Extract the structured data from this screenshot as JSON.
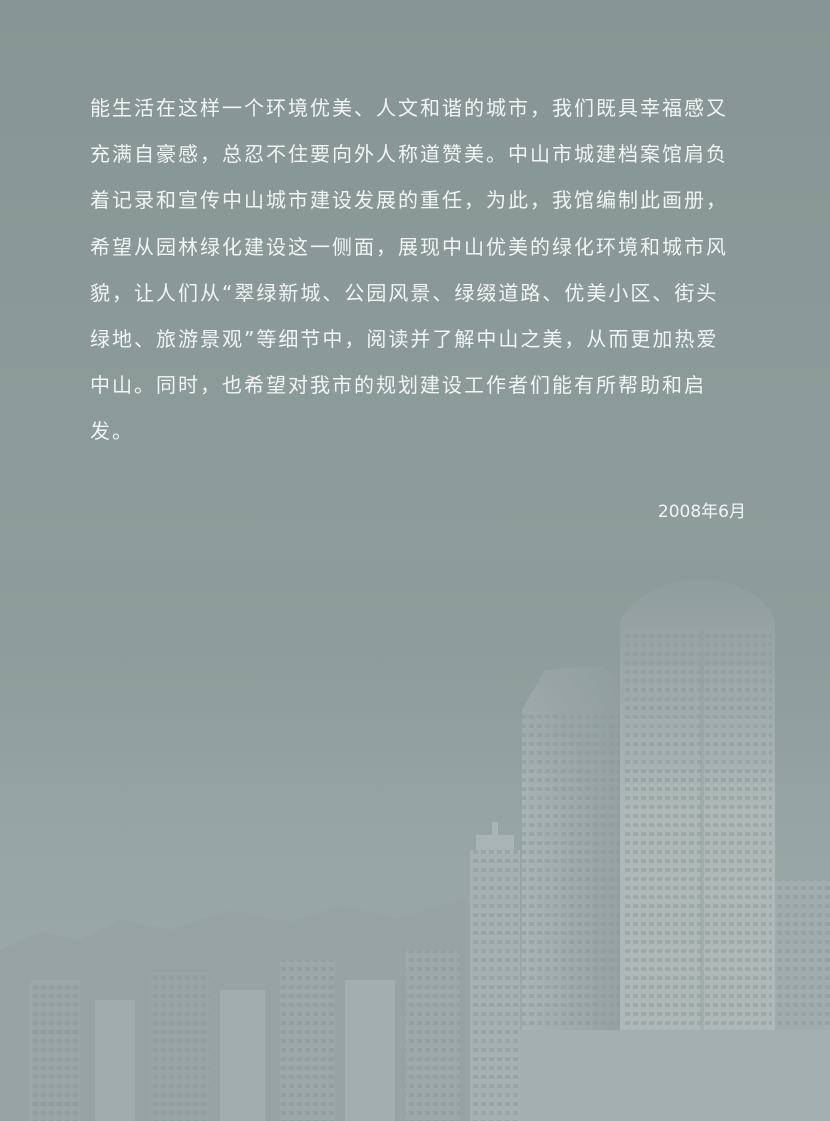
{
  "body": {
    "lines": [
      "能生活在这样一个环境优美、人文和谐的城市，我们既具幸福感又",
      "充满自豪感，总忍不住要向外人称道赞美。中山市城建档案馆肩负",
      "着记录和宣传中山城市建设发展的重任，为此，我馆编制此画册，",
      "希望从园林绿化建设这一侧面，展现中山优美的绿化环境和城市风",
      "貌，让人们从“翠绿新城、公园风景、绿缀道路、优美小区、街头",
      "绿地、旅游景观”等细节中，阅读并了解中山之美，从而更加热爱",
      "中山。同时，也希望对我市的规划建设工作者们能有所帮助和启",
      "发。"
    ],
    "date": "2008年6月"
  }
}
